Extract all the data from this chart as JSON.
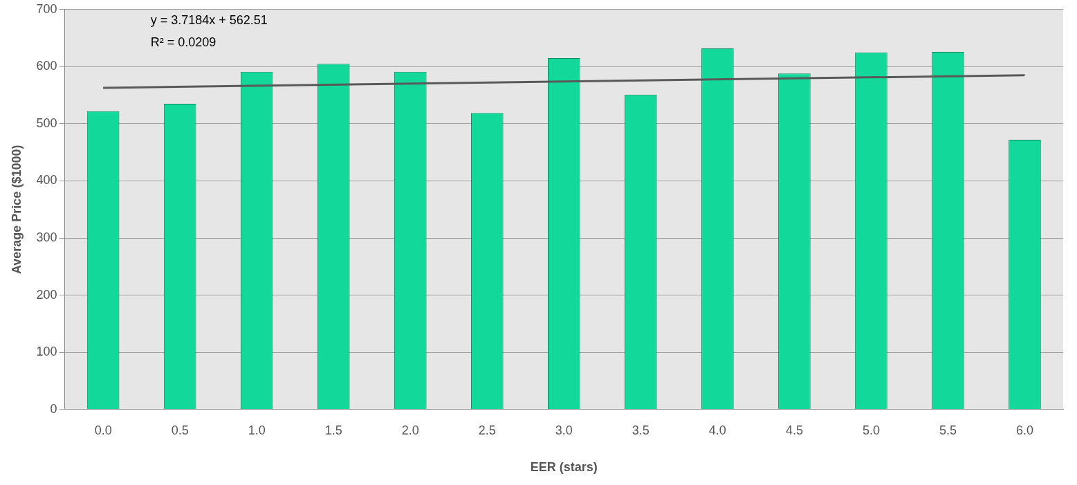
{
  "chart_data": {
    "type": "bar",
    "xlabel": "EER (stars)",
    "ylabel": "Average Price ($1000)",
    "categories": [
      "0.0",
      "0.5",
      "1.0",
      "1.5",
      "2.0",
      "2.5",
      "3.0",
      "3.5",
      "4.0",
      "4.5",
      "5.0",
      "5.5",
      "6.0"
    ],
    "series": [
      {
        "color": "#12d999",
        "values": [
          522,
          535,
          591,
          605,
          591,
          519,
          615,
          551,
          632,
          588,
          625,
          626,
          472
        ]
      },
      {
        "type": "line",
        "color": "#595959",
        "x": [
          "0.0",
          "6.0"
        ],
        "values": [
          563,
          585
        ]
      }
    ],
    "ylim": [
      0,
      700
    ],
    "yticks": [
      0,
      100,
      200,
      300,
      400,
      500,
      600,
      700
    ],
    "grid": "y",
    "legend": false,
    "annotations": [
      "y = 3.7184x + 562.51",
      "R² = 0.0209"
    ]
  }
}
